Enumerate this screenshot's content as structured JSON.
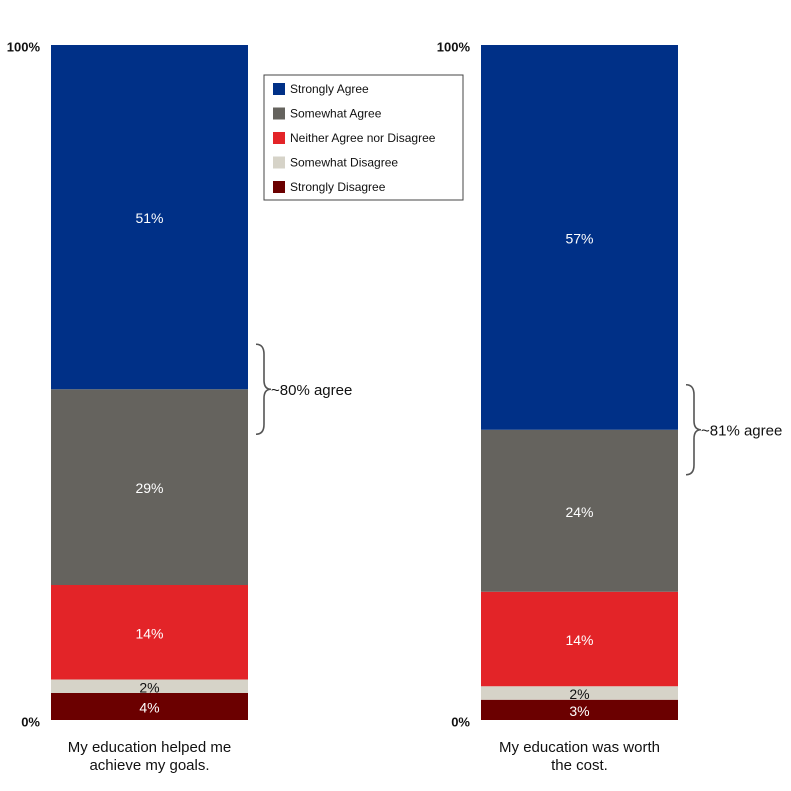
{
  "chart_data": {
    "type": "bar",
    "stacked": true,
    "categories": [
      "My education helped me achieve my goals.",
      "My education was worth the cost."
    ],
    "category_lines": [
      [
        "My education helped me",
        "achieve my goals."
      ],
      [
        "My education was worth",
        "the cost."
      ]
    ],
    "series": [
      {
        "name": "Strongly Disagree",
        "color": "#6b0000",
        "values": [
          4,
          3
        ],
        "labels": [
          "4%",
          "3%"
        ]
      },
      {
        "name": "Somewhat Disagree",
        "color": "#d6d3c8",
        "values": [
          2,
          2
        ],
        "labels": [
          "2%",
          "2%"
        ]
      },
      {
        "name": "Neither Agree nor Disagree",
        "color": "#e32428",
        "values": [
          14,
          14
        ],
        "labels": [
          "14%",
          "14%"
        ]
      },
      {
        "name": "Somewhat Agree",
        "color": "#65635e",
        "values": [
          29,
          24
        ],
        "labels": [
          "29%",
          "24%"
        ]
      },
      {
        "name": "Strongly Agree",
        "color": "#003087",
        "values": [
          51,
          57
        ],
        "labels": [
          "51%",
          "57%"
        ]
      }
    ],
    "legend_order": [
      "Strongly Agree",
      "Somewhat Agree",
      "Neither Agree nor Disagree",
      "Somewhat Disagree",
      "Strongly Disagree"
    ],
    "ylim": [
      0,
      100
    ],
    "y_tick_labels": [
      "0%",
      "100%"
    ],
    "annotations": [
      "~80% agree",
      "~81% agree"
    ],
    "legend_position": "top-center",
    "grid": false
  }
}
